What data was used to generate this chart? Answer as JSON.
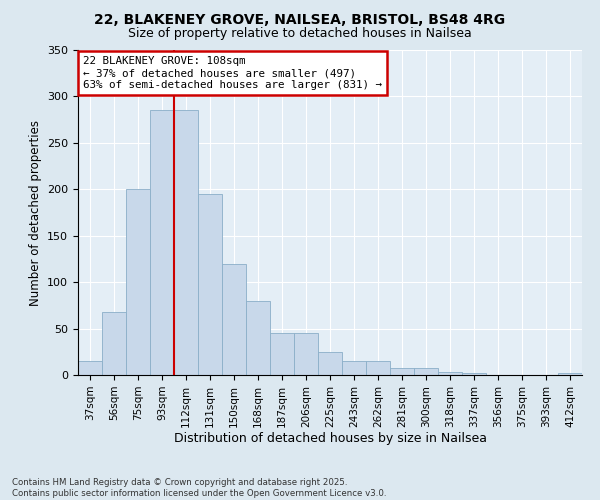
{
  "title_line1": "22, BLAKENEY GROVE, NAILSEA, BRISTOL, BS48 4RG",
  "title_line2": "Size of property relative to detached houses in Nailsea",
  "xlabel": "Distribution of detached houses by size in Nailsea",
  "ylabel": "Number of detached properties",
  "categories": [
    "37sqm",
    "56sqm",
    "75sqm",
    "93sqm",
    "112sqm",
    "131sqm",
    "150sqm",
    "168sqm",
    "187sqm",
    "206sqm",
    "225sqm",
    "243sqm",
    "262sqm",
    "281sqm",
    "300sqm",
    "318sqm",
    "337sqm",
    "356sqm",
    "375sqm",
    "393sqm",
    "412sqm"
  ],
  "values": [
    15,
    68,
    200,
    285,
    285,
    195,
    120,
    80,
    45,
    45,
    25,
    15,
    15,
    8,
    8,
    3,
    2,
    0,
    0,
    0,
    2
  ],
  "bar_color": "#c8d8ea",
  "bar_edge_color": "#8aaec8",
  "vline_color": "#cc0000",
  "vline_pos": 3.5,
  "annotation_box_color": "#cc0000",
  "annotation_text_line1": "22 BLAKENEY GROVE: 108sqm",
  "annotation_text_line2": "← 37% of detached houses are smaller (497)",
  "annotation_text_line3": "63% of semi-detached houses are larger (831) →",
  "ylim": [
    0,
    350
  ],
  "yticks": [
    0,
    50,
    100,
    150,
    200,
    250,
    300,
    350
  ],
  "footnote_line1": "Contains HM Land Registry data © Crown copyright and database right 2025.",
  "footnote_line2": "Contains public sector information licensed under the Open Government Licence v3.0.",
  "background_color": "#dce8f0",
  "plot_bg_color": "#e4eef6"
}
